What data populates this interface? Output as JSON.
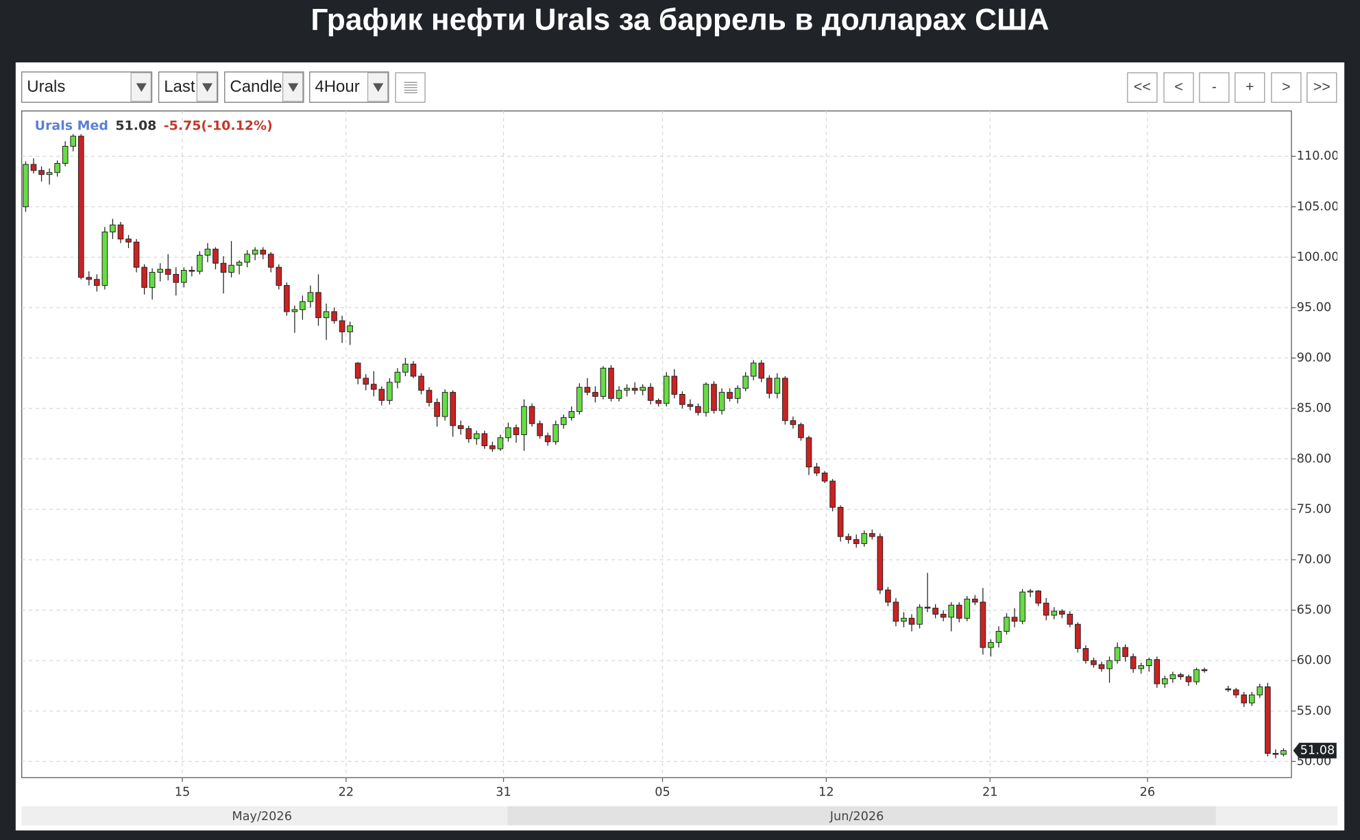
{
  "page": {
    "title": "График нефти Urals за баррель в долларах США",
    "toolbar": {
      "symbol": "Urals",
      "price_type": "Last",
      "chart_type": "Candle",
      "interval": "4Hour",
      "buttons": [
        "<<",
        "<",
        "-",
        "+",
        ">",
        ">>"
      ]
    }
  },
  "chart_data": {
    "type": "candlestick",
    "legend_name": "Urals Med",
    "change_label": "-5.75(-10.12%)",
    "periods": [
      "May/2026",
      "Jun/2026"
    ],
    "up_color": "#66dd44",
    "down_color": "#cc2222",
    "grid": true,
    "xlim": [
      -0.5,
      160
    ],
    "ylim": [
      48.4,
      114.5
    ],
    "xticks": [
      {
        "value": 19.8,
        "label": "15"
      },
      {
        "value": 40.5,
        "label": "22"
      },
      {
        "value": 60.4,
        "label": "31"
      },
      {
        "value": 80.5,
        "label": "05"
      },
      {
        "value": 101.2,
        "label": "12"
      },
      {
        "value": 121.9,
        "label": "21"
      },
      {
        "value": 141.8,
        "label": "26"
      }
    ],
    "yticks": [
      {
        "value": 50,
        "label": "50.00"
      },
      {
        "value": 55,
        "label": "55.00"
      },
      {
        "value": 60,
        "label": "60.00"
      },
      {
        "value": 65,
        "label": "65.00"
      },
      {
        "value": 70,
        "label": "70.00"
      },
      {
        "value": 75,
        "label": "75.00"
      },
      {
        "value": 80,
        "label": "80.00"
      },
      {
        "value": 85,
        "label": "85.00"
      },
      {
        "value": 90,
        "label": "90.00"
      },
      {
        "value": 95,
        "label": "95.00"
      },
      {
        "value": 100,
        "label": "100.00"
      },
      {
        "value": 105,
        "label": "105.00"
      },
      {
        "value": 110,
        "label": "110.00"
      }
    ],
    "x": [
      0,
      1,
      2,
      3,
      4,
      5,
      6,
      7,
      8,
      9,
      10,
      11,
      12,
      13,
      14,
      15,
      16,
      17,
      18,
      19,
      20,
      21,
      22,
      23,
      24,
      25,
      26,
      27,
      28,
      29,
      30,
      31,
      32,
      33,
      34,
      35,
      36,
      37,
      38,
      39,
      40,
      41,
      42,
      43,
      44,
      45,
      46,
      47,
      48,
      49,
      50,
      51,
      52,
      53,
      54,
      55,
      56,
      57,
      58,
      59,
      60,
      61,
      62,
      63,
      64,
      65,
      66,
      67,
      68,
      69,
      70,
      71,
      72,
      73,
      74,
      75,
      76,
      77,
      78,
      79,
      80,
      81,
      82,
      83,
      84,
      85,
      86,
      87,
      88,
      89,
      90,
      91,
      92,
      93,
      94,
      95,
      96,
      97,
      98,
      99,
      100,
      101,
      102,
      103,
      104,
      105,
      106,
      107,
      108,
      109,
      110,
      111,
      112,
      113,
      114,
      115,
      116,
      117,
      118,
      119,
      120,
      121,
      122,
      123,
      124,
      125,
      126,
      127,
      128,
      129,
      130,
      131,
      132,
      133,
      134,
      135,
      136,
      137,
      138,
      139,
      140,
      141,
      142,
      143,
      144,
      145,
      146,
      147,
      148,
      149,
      152,
      153,
      154,
      155,
      156,
      157,
      158,
      159
    ],
    "open": [
      105,
      109.2,
      108.6,
      108.2,
      108.4,
      109.3,
      111,
      112,
      98,
      97.8,
      97.2,
      102.5,
      103.2,
      101.8,
      101.5,
      99,
      97,
      98.5,
      98.8,
      98.3,
      97.5,
      98.7,
      98.6,
      100.2,
      100.8,
      99.4,
      98.5,
      99.2,
      99.5,
      100.3,
      100.7,
      100.3,
      99,
      97.2,
      94.6,
      94.8,
      95.6,
      96.5,
      94,
      94.6,
      93.7,
      92.6,
      89.5,
      88,
      87.4,
      86.9,
      85.8,
      87.6,
      88.6,
      89.4,
      88.2,
      86.8,
      85.6,
      84.2,
      86.6,
      83.3,
      83,
      82,
      82.5,
      81.3,
      81,
      82.1,
      83.1,
      82.4,
      85.2,
      83.5,
      82.3,
      81.7,
      83.4,
      84.1,
      84.7,
      87.1,
      86.6,
      86.2,
      89,
      86,
      86.8,
      87,
      86.8,
      87.1,
      85.8,
      85.5,
      88.2,
      86.4,
      85.4,
      85.2,
      84.6,
      87.4,
      84.8,
      86.6,
      86,
      87,
      88.2,
      89.5,
      88,
      86.5,
      88,
      83.8,
      83.4,
      82.1,
      79.2,
      78.6,
      77.8,
      75.2,
      72.3,
      72,
      71.6,
      72.6,
      72.3,
      67,
      65.8,
      63.9,
      64.2,
      63.6,
      65.3,
      65.2,
      64.6,
      64.3,
      65.5,
      64.2,
      66.1,
      65.8,
      61.3,
      61.8,
      62.9,
      64.3,
      63.9,
      66.8,
      66.9,
      65.7,
      64.5,
      64.9,
      64.6,
      63.6,
      61.2,
      60,
      59.6,
      59.2,
      60,
      61.3,
      60.4,
      59.2,
      59.5,
      60.1,
      57.7,
      58.2,
      58.6,
      58.4,
      57.9,
      59.1,
      57.2,
      57.1,
      56.6,
      55.8,
      56.6,
      57.4,
      50.8,
      50.7
    ],
    "high": [
      109.5,
      109.8,
      109,
      108.8,
      109.6,
      111.5,
      112.2,
      112.2,
      98.6,
      98.3,
      103,
      103.8,
      103.5,
      102.2,
      101.8,
      99.3,
      98.9,
      99.4,
      100.3,
      99,
      99,
      99.1,
      100.6,
      101.4,
      101,
      100.1,
      101.6,
      99.7,
      100.7,
      101,
      101,
      100.5,
      99.3,
      97.5,
      95.2,
      96.2,
      97.2,
      98.3,
      95.4,
      95,
      94.2,
      93.6,
      89.6,
      88.4,
      88.7,
      87.2,
      88,
      89,
      90,
      89.7,
      88.5,
      87.1,
      86,
      86.9,
      86.8,
      83.8,
      83.3,
      82.8,
      82.8,
      81.7,
      82.4,
      83.6,
      83.4,
      85.9,
      85.5,
      83.8,
      82.6,
      83.8,
      84.4,
      85.2,
      87.5,
      88,
      87.2,
      89.2,
      89.3,
      87.2,
      87.4,
      87.6,
      87.4,
      87.5,
      86,
      88.6,
      88.9,
      86.7,
      85.9,
      85.5,
      87.6,
      87.7,
      87,
      87,
      87.3,
      88.6,
      89.8,
      89.8,
      88.3,
      88.5,
      88.2,
      84.2,
      83.6,
      82.3,
      79.6,
      78.8,
      78,
      75.4,
      72.6,
      72.5,
      72.9,
      73,
      72.6,
      67.3,
      66.2,
      64.8,
      64.6,
      65.6,
      68.7,
      65.6,
      65,
      65.8,
      65.8,
      66.4,
      66.5,
      67.2,
      62.1,
      63.4,
      64.7,
      65.2,
      67.1,
      67.1,
      67,
      66.2,
      65.3,
      65.1,
      64.9,
      63.8,
      61.5,
      60.3,
      59.9,
      60.4,
      61.8,
      61.6,
      60.7,
      59.8,
      60.3,
      60.4,
      58.5,
      58.9,
      58.8,
      58.6,
      59.3,
      59.3,
      57.5,
      57.3,
      56.9,
      56.9,
      57.7,
      57.8,
      51.2,
      51.3
    ],
    "low": [
      104.5,
      108.3,
      107.5,
      107.2,
      108,
      109,
      110.5,
      97.8,
      97.2,
      96.6,
      96.8,
      101.8,
      101.4,
      100.9,
      98.5,
      96.3,
      95.8,
      97.6,
      97.7,
      96.2,
      97,
      98.1,
      98.3,
      99.5,
      98.8,
      96.4,
      98,
      98.3,
      99,
      99.7,
      99.8,
      98.5,
      96.8,
      94.2,
      92.5,
      93.8,
      95,
      93.2,
      91.8,
      93.4,
      91.5,
      91.3,
      87.4,
      86.8,
      86.2,
      85.3,
      85.4,
      87,
      88.2,
      88,
      86.4,
      85.2,
      83.2,
      83.8,
      82.2,
      82.4,
      81.6,
      81.4,
      81,
      80.7,
      80.8,
      81.7,
      81.6,
      80.8,
      83.2,
      82,
      81.3,
      81.4,
      83,
      83.8,
      84.4,
      86.3,
      85.6,
      85.9,
      85.7,
      85.7,
      86.2,
      86.4,
      86.3,
      85.4,
      85.2,
      85.2,
      86,
      85,
      84.8,
      84.3,
      84.2,
      84.5,
      84.4,
      85.7,
      85.5,
      86.7,
      87.8,
      87.6,
      86,
      86,
      83.4,
      83,
      81.8,
      78.4,
      78.3,
      77.6,
      74.8,
      71.8,
      71.6,
      71.2,
      71.3,
      72,
      66.6,
      65.4,
      63.4,
      63.3,
      62.9,
      63.2,
      64.8,
      64.2,
      63.9,
      62.9,
      63.8,
      63.9,
      65.5,
      60.6,
      60.4,
      61.3,
      62.6,
      63.3,
      63.6,
      66.3,
      65.4,
      64,
      64.1,
      64.2,
      63.3,
      60.8,
      59.7,
      59.3,
      58.9,
      57.8,
      59.7,
      59.9,
      58.8,
      58.7,
      58.9,
      57.3,
      57.3,
      57.8,
      58.1,
      57.5,
      57.6,
      58.8,
      56.9,
      56.3,
      55.4,
      55.5,
      56.3,
      50.5,
      50.3,
      50.5
    ],
    "close": [
      109.2,
      108.6,
      108.2,
      108.4,
      109.3,
      111,
      112,
      98,
      97.8,
      97.2,
      102.5,
      103.2,
      101.8,
      101.5,
      99,
      97,
      98.5,
      98.8,
      98.3,
      97.5,
      98.7,
      98.6,
      100.2,
      100.8,
      99.4,
      98.5,
      99.2,
      99.5,
      100.3,
      100.7,
      100.3,
      99,
      97.2,
      94.6,
      94.8,
      95.6,
      96.5,
      94,
      94.6,
      93.7,
      92.6,
      93.2,
      88,
      87.4,
      86.9,
      85.8,
      87.6,
      88.6,
      89.4,
      88.2,
      86.8,
      85.6,
      84.2,
      86.6,
      83.3,
      83,
      82,
      82.5,
      81.3,
      81,
      82.1,
      83.1,
      82.4,
      85.2,
      83.5,
      82.3,
      81.7,
      83.4,
      84.1,
      84.7,
      87.1,
      86.6,
      86.2,
      89,
      86,
      86.8,
      87,
      86.8,
      87.1,
      85.8,
      85.5,
      88.2,
      86.4,
      85.4,
      85.2,
      84.6,
      87.4,
      84.8,
      86.6,
      86,
      87,
      88.2,
      89.5,
      88,
      86.5,
      88,
      83.8,
      83.4,
      82.1,
      79.2,
      78.6,
      77.8,
      75.2,
      72.3,
      72,
      71.6,
      72.6,
      72.3,
      67,
      65.8,
      63.9,
      64.2,
      63.6,
      65.3,
      65.2,
      64.6,
      64.3,
      65.5,
      64.2,
      66.1,
      65.8,
      61.3,
      61.8,
      62.9,
      64.3,
      63.9,
      66.8,
      66.9,
      65.7,
      64.5,
      64.9,
      64.6,
      63.6,
      61.2,
      60,
      59.6,
      59.2,
      60,
      61.3,
      60.4,
      59.2,
      59.5,
      60.1,
      57.7,
      58.2,
      58.6,
      58.4,
      57.9,
      59.1,
      59,
      57.1,
      56.6,
      55.8,
      56.6,
      57.4,
      50.8,
      50.7,
      51.08
    ]
  }
}
